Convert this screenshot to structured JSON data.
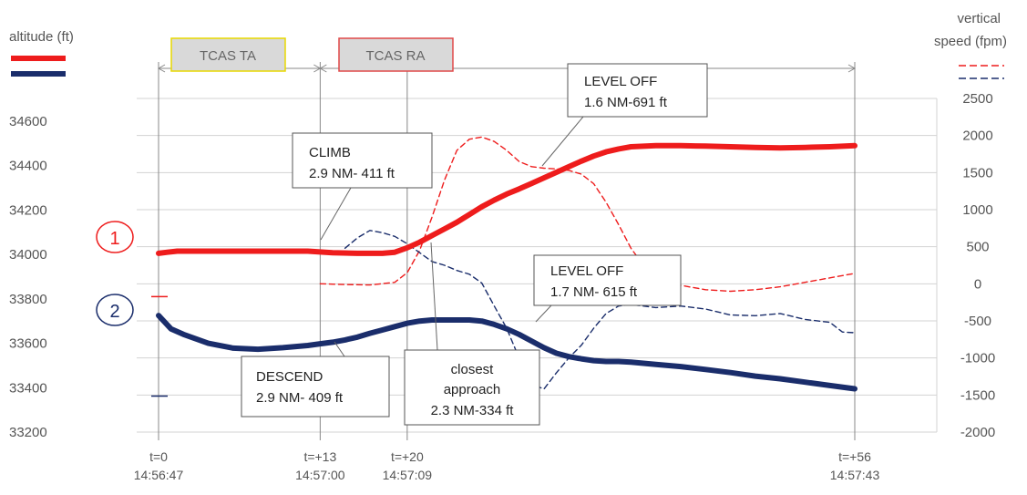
{
  "chart_data": {
    "type": "line",
    "ylabel_left": "altitude (ft)",
    "ylabel_right_line1": "vertical",
    "ylabel_right_line2": "speed (fpm)",
    "yticks_left": [
      "34600",
      "34400",
      "34200",
      "34000",
      "33800",
      "33600",
      "33400",
      "33200"
    ],
    "yticks_right": [
      "2500",
      "2000",
      "1500",
      "1000",
      "500",
      "0",
      "-500",
      "-1000",
      "-1500",
      "-2000"
    ],
    "ylim_left": [
      33200,
      34600
    ],
    "ylim_right": [
      -2000,
      2500
    ],
    "xlim": [
      0,
      56
    ],
    "xticks": [
      {
        "t": 0,
        "label": "t=0",
        "time": "14:56:47"
      },
      {
        "t": 13,
        "label": "t=+13",
        "time": "14:57:00"
      },
      {
        "t": 20,
        "label": "t=+20",
        "time": "14:57:09"
      },
      {
        "t": 56,
        "label": "t=+56",
        "time": "14:57:43"
      }
    ],
    "grid": true,
    "series": [
      {
        "axis": "left",
        "style": "solid",
        "color": "#ee1c1c",
        "x": [
          0,
          0.7,
          1.5,
          3,
          6,
          9,
          12,
          14,
          16,
          17,
          18,
          19,
          20,
          21,
          22,
          23,
          24,
          25,
          26,
          27,
          28,
          29,
          30,
          31,
          32,
          33,
          34,
          35,
          36,
          37,
          38,
          40,
          42,
          44,
          46,
          48,
          50,
          52,
          54,
          56
        ],
        "y": [
          34005,
          34010,
          34015,
          34015,
          34015,
          34015,
          34015,
          34008,
          34005,
          34005,
          34005,
          34010,
          34030,
          34055,
          34085,
          34115,
          34145,
          34180,
          34215,
          34245,
          34272,
          34295,
          34320,
          34345,
          34370,
          34395,
          34420,
          34443,
          34462,
          34475,
          34485,
          34490,
          34490,
          34488,
          34485,
          34482,
          34480,
          34482,
          34485,
          34490
        ]
      },
      {
        "axis": "left",
        "style": "solid",
        "color": "#1a2d6b",
        "x": [
          0,
          1,
          2,
          4,
          6,
          8,
          10,
          12,
          13,
          14,
          15,
          16,
          17,
          18,
          19,
          20,
          21,
          22,
          23,
          24,
          25,
          26,
          27,
          28,
          29,
          30,
          31,
          32,
          33,
          34,
          35,
          36,
          37,
          38,
          40,
          42,
          44,
          46,
          48,
          50,
          52,
          54,
          56
        ],
        "y": [
          33725,
          33665,
          33640,
          33600,
          33578,
          33573,
          33580,
          33590,
          33598,
          33605,
          33615,
          33628,
          33645,
          33660,
          33675,
          33690,
          33700,
          33705,
          33705,
          33705,
          33705,
          33700,
          33685,
          33665,
          33640,
          33610,
          33580,
          33555,
          33540,
          33530,
          33522,
          33518,
          33518,
          33515,
          33505,
          33495,
          33482,
          33468,
          33452,
          33440,
          33425,
          33410,
          33395
        ]
      },
      {
        "axis": "right",
        "style": "dashed",
        "color": "#ee1c1c",
        "x": [
          13,
          15,
          17,
          19,
          20,
          21,
          22,
          23,
          24,
          25,
          26,
          27,
          28,
          29,
          30,
          31,
          32,
          33,
          34,
          35,
          36,
          37,
          38,
          39,
          40,
          42,
          44,
          46,
          48,
          50,
          52,
          54,
          56
        ],
        "y": [
          0,
          -10,
          -15,
          20,
          150,
          450,
          900,
          1400,
          1800,
          1950,
          1980,
          1920,
          1800,
          1650,
          1580,
          1560,
          1550,
          1530,
          1480,
          1350,
          1100,
          800,
          480,
          250,
          100,
          -20,
          -80,
          -100,
          -80,
          -40,
          20,
          80,
          140
        ]
      },
      {
        "axis": "right",
        "style": "dashed",
        "color": "#1a2d6b",
        "x": [
          15,
          16,
          17,
          18,
          19,
          20,
          21,
          22,
          23,
          24,
          25,
          26,
          27,
          28,
          29,
          30,
          31,
          32,
          33,
          34,
          35,
          36,
          37,
          38,
          40,
          42,
          44,
          46,
          48,
          50,
          52,
          54,
          55,
          56
        ],
        "y": [
          480,
          620,
          720,
          690,
          640,
          540,
          420,
          300,
          250,
          180,
          130,
          10,
          -300,
          -600,
          -1000,
          -1350,
          -1420,
          -1200,
          -1000,
          -830,
          -600,
          -400,
          -300,
          -280,
          -320,
          -300,
          -340,
          -420,
          -430,
          -400,
          -480,
          -520,
          -650,
          -660
        ]
      }
    ],
    "tiny_marks": [
      {
        "axis": "left",
        "x": 0,
        "y": 33810,
        "color": "#ee1c1c"
      },
      {
        "axis": "left",
        "x": 0,
        "y": 33362,
        "color": "#1a2d6b"
      }
    ],
    "aircraft_labels": [
      {
        "label": "1",
        "color": "#ee1c1c"
      },
      {
        "label": "2",
        "color": "#1a2d6b"
      }
    ],
    "phases": [
      {
        "label": "TCAS TA",
        "border": "#e8d800"
      },
      {
        "label": "TCAS RA",
        "border": "#e04848"
      }
    ],
    "annotations": [
      {
        "line1": "CLIMB",
        "line2": "2.9 NM- 411 ft"
      },
      {
        "line1": "LEVEL OFF",
        "line2": "1.6 NM-691 ft"
      },
      {
        "line1": "LEVEL OFF",
        "line2": "1.7 NM- 615 ft"
      },
      {
        "line1": "DESCEND",
        "line2": "2.9 NM- 409 ft"
      },
      {
        "line1": "closest",
        "line2": "approach",
        "line3": "2.3 NM-334 ft"
      }
    ]
  }
}
